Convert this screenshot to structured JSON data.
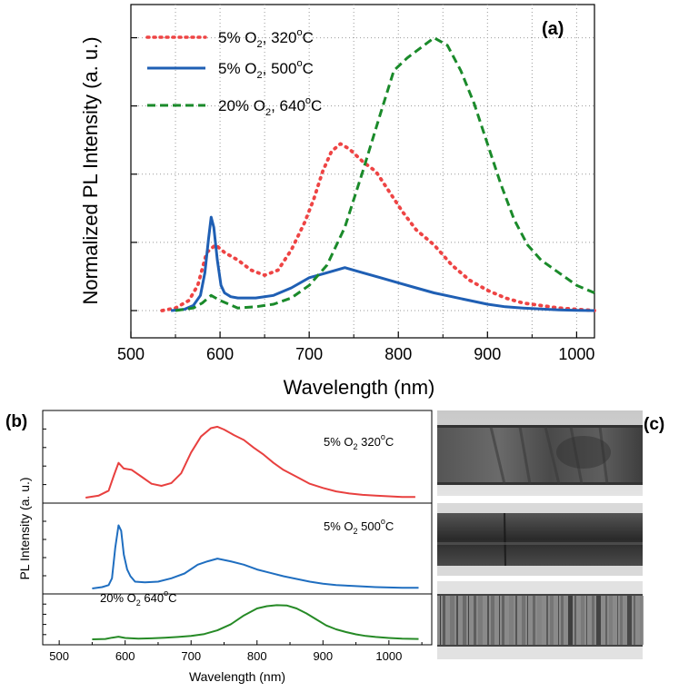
{
  "chart_data": [
    {
      "type": "line",
      "panel": "(a)",
      "xlabel": "Wavelength (nm)",
      "ylabel": "Normalized PL Intensity (a. u.)",
      "xlim": [
        500,
        1020
      ],
      "ylim": [
        0,
        1.1
      ],
      "xticks": [
        "500",
        "600",
        "700",
        "800",
        "900",
        "1000"
      ],
      "grid": true,
      "legend_position": "top-left",
      "series": [
        {
          "name": "5% O2, 320°C",
          "name_main": "5% O",
          "name_sub": "2",
          "name_rest": ", 320",
          "name_deg": "o",
          "name_unit": "C",
          "color": "#ee4444",
          "style": "dotted",
          "x": [
            535,
            550,
            565,
            575,
            585,
            595,
            605,
            620,
            635,
            650,
            665,
            680,
            695,
            705,
            715,
            725,
            735,
            745,
            760,
            775,
            790,
            805,
            820,
            840,
            860,
            880,
            900,
            920,
            940,
            960,
            980,
            1000,
            1020
          ],
          "y": [
            0,
            0.01,
            0.04,
            0.1,
            0.23,
            0.26,
            0.23,
            0.2,
            0.16,
            0.14,
            0.16,
            0.24,
            0.35,
            0.44,
            0.55,
            0.63,
            0.66,
            0.64,
            0.59,
            0.55,
            0.47,
            0.39,
            0.32,
            0.26,
            0.18,
            0.12,
            0.08,
            0.05,
            0.03,
            0.02,
            0.01,
            0.005,
            0
          ]
        },
        {
          "name": "5% O2, 500°C",
          "name_main": "5% O",
          "name_sub": "2",
          "name_rest": ", 500",
          "name_deg": "o",
          "name_unit": "C",
          "color": "#1f5fb4",
          "style": "solid",
          "x": [
            545,
            560,
            570,
            578,
            583,
            587,
            590,
            593,
            597,
            601,
            605,
            612,
            620,
            640,
            660,
            680,
            700,
            720,
            740,
            760,
            780,
            800,
            820,
            840,
            860,
            880,
            900,
            920,
            940,
            960,
            980,
            1000,
            1020
          ],
          "y": [
            0,
            0.005,
            0.02,
            0.06,
            0.15,
            0.28,
            0.37,
            0.33,
            0.2,
            0.1,
            0.07,
            0.055,
            0.05,
            0.05,
            0.06,
            0.09,
            0.13,
            0.15,
            0.17,
            0.15,
            0.13,
            0.11,
            0.09,
            0.07,
            0.055,
            0.04,
            0.025,
            0.015,
            0.01,
            0.006,
            0.003,
            0.001,
            0
          ]
        },
        {
          "name": "20% O2, 640°C",
          "name_main": "20% O",
          "name_sub": "2",
          "name_rest": ", 640",
          "name_deg": "o",
          "name_unit": "C",
          "color": "#1a8a2a",
          "style": "dashed",
          "x": [
            550,
            570,
            580,
            590,
            600,
            620,
            640,
            660,
            680,
            700,
            720,
            740,
            760,
            780,
            795,
            810,
            825,
            840,
            855,
            870,
            885,
            900,
            915,
            930,
            945,
            960,
            980,
            1000,
            1020
          ],
          "y": [
            0,
            0.01,
            0.03,
            0.06,
            0.04,
            0.01,
            0.015,
            0.025,
            0.05,
            0.1,
            0.18,
            0.33,
            0.55,
            0.78,
            0.95,
            1.0,
            1.04,
            1.08,
            1.05,
            0.95,
            0.82,
            0.66,
            0.5,
            0.36,
            0.26,
            0.2,
            0.15,
            0.1,
            0.07
          ]
        }
      ]
    },
    {
      "type": "line",
      "panel": "(b)",
      "xlabel": "Wavelength (nm)",
      "ylabel": "PL Intensity (a. u.)",
      "xlim": [
        475,
        1065
      ],
      "xticks": [
        "500",
        "600",
        "700",
        "800",
        "900",
        "1000"
      ],
      "grid": false,
      "subplots": [
        {
          "label_main": "5% O",
          "label_sub": "2",
          "label_rest": " 320",
          "label_deg": "o",
          "label_unit": "C",
          "color": "#e8403f",
          "ylim": [
            0,
            1.15
          ],
          "x": [
            540,
            560,
            575,
            583,
            590,
            598,
            610,
            625,
            640,
            655,
            670,
            685,
            700,
            715,
            730,
            740,
            750,
            765,
            780,
            795,
            810,
            825,
            840,
            860,
            880,
            900,
            920,
            940,
            960,
            980,
            1000,
            1020,
            1040
          ],
          "y": [
            0,
            0.03,
            0.1,
            0.32,
            0.5,
            0.42,
            0.4,
            0.3,
            0.2,
            0.17,
            0.21,
            0.35,
            0.65,
            0.88,
            1.0,
            1.02,
            0.98,
            0.9,
            0.83,
            0.72,
            0.62,
            0.5,
            0.4,
            0.3,
            0.2,
            0.14,
            0.09,
            0.06,
            0.04,
            0.03,
            0.02,
            0.01,
            0.01
          ]
        },
        {
          "label_main": "5% O",
          "label_sub": "2",
          "label_rest": " 500",
          "label_deg": "o",
          "label_unit": "C",
          "color": "#1f6ec0",
          "ylim": [
            0,
            1.15
          ],
          "x": [
            550,
            565,
            575,
            580,
            585,
            590,
            594,
            598,
            603,
            608,
            615,
            630,
            650,
            670,
            690,
            710,
            725,
            740,
            760,
            780,
            800,
            820,
            840,
            860,
            880,
            900,
            920,
            940,
            960,
            980,
            1000,
            1020,
            1045
          ],
          "y": [
            0,
            0.02,
            0.05,
            0.15,
            0.6,
            0.93,
            0.85,
            0.5,
            0.28,
            0.18,
            0.1,
            0.09,
            0.1,
            0.15,
            0.22,
            0.35,
            0.4,
            0.44,
            0.4,
            0.35,
            0.28,
            0.23,
            0.18,
            0.14,
            0.1,
            0.07,
            0.05,
            0.04,
            0.03,
            0.02,
            0.015,
            0.01,
            0.01
          ]
        },
        {
          "label_main": "20% O",
          "label_sub": "2",
          "label_rest": "  640",
          "label_deg": "o",
          "label_unit": "C",
          "color": "#268a26",
          "ylim": [
            0,
            1.15
          ],
          "x": [
            550,
            570,
            580,
            590,
            600,
            620,
            640,
            660,
            680,
            700,
            720,
            740,
            760,
            780,
            800,
            815,
            830,
            845,
            860,
            875,
            890,
            905,
            920,
            935,
            950,
            965,
            980,
            1000,
            1020,
            1045
          ],
          "y": [
            0,
            0.01,
            0.05,
            0.08,
            0.04,
            0.02,
            0.03,
            0.05,
            0.07,
            0.1,
            0.16,
            0.27,
            0.45,
            0.72,
            0.93,
            1.0,
            1.03,
            1.02,
            0.93,
            0.78,
            0.6,
            0.42,
            0.3,
            0.22,
            0.15,
            0.1,
            0.07,
            0.04,
            0.02,
            0.01
          ]
        }
      ]
    }
  ],
  "panel_c": {
    "label": "(c)"
  }
}
